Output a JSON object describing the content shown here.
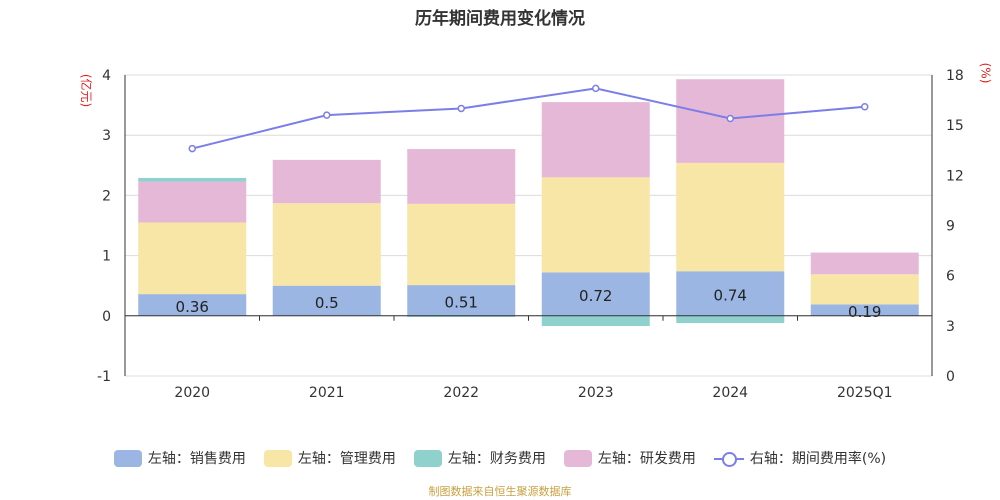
{
  "title": "历年期间费用变化情况",
  "left_unit": "(亿元)",
  "right_unit": "(%)",
  "source": "制图数据来自恒生聚源数据库",
  "colors": {
    "sales": "#9bb6e2",
    "admin": "#f7e6a6",
    "finance": "#8fd1cd",
    "rd": "#e6b8d8",
    "rate": "#7b7ee8"
  },
  "chart_data": {
    "type": "bar",
    "title": "历年期间费用变化情况",
    "categories": [
      "2020",
      "2021",
      "2022",
      "2023",
      "2024",
      "2025Q1"
    ],
    "series": [
      {
        "key": "sales",
        "name": "左轴：销售费用",
        "axis": "left",
        "values": [
          0.36,
          0.5,
          0.51,
          0.72,
          0.74,
          0.19
        ]
      },
      {
        "key": "finance",
        "name": "左轴：财务费用",
        "axis": "left",
        "values": [
          0.06,
          0.0,
          -0.02,
          -0.17,
          -0.12,
          0.0
        ]
      },
      {
        "key": "admin",
        "name": "左轴：管理费用",
        "axis": "left",
        "values": [
          1.19,
          1.37,
          1.35,
          1.58,
          1.8,
          0.5
        ]
      },
      {
        "key": "rd",
        "name": "左轴：研发费用",
        "axis": "left",
        "values": [
          0.68,
          0.72,
          0.91,
          1.25,
          1.39,
          0.36
        ]
      },
      {
        "key": "rate",
        "name": "右轴：期间费用率(%)",
        "axis": "right",
        "type": "line",
        "values": [
          13.6,
          15.6,
          16.0,
          17.2,
          15.4,
          16.1
        ]
      }
    ],
    "data_labels": [
      "0.36",
      "0.5",
      "0.51",
      "0.72",
      "0.74",
      "0.19"
    ],
    "y_left": {
      "range": [
        -1,
        4
      ],
      "ticks": [
        "-1",
        "0",
        "1",
        "2",
        "3",
        "4"
      ]
    },
    "y_right": {
      "range": [
        0,
        18
      ],
      "ticks": [
        "0",
        "3",
        "6",
        "9",
        "12",
        "15",
        "18"
      ]
    },
    "legend": {
      "position": "bottom",
      "items": [
        {
          "key": "sales",
          "label": "左轴：销售费用",
          "kind": "box"
        },
        {
          "key": "admin",
          "label": "左轴：管理费用",
          "kind": "box"
        },
        {
          "key": "finance",
          "label": "左轴：财务费用",
          "kind": "box"
        },
        {
          "key": "rd",
          "label": "左轴：研发费用",
          "kind": "box"
        },
        {
          "key": "rate",
          "label": "右轴：期间费用率(%)",
          "kind": "line"
        }
      ]
    },
    "grid": true
  }
}
